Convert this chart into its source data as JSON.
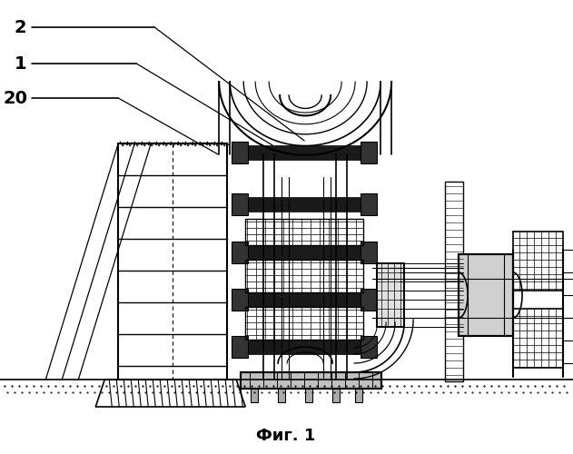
{
  "title": "Фиг. 1",
  "labels": [
    "2",
    "1",
    "20"
  ],
  "bg_color": "#ffffff",
  "line_color": "#000000",
  "title_fontsize": 13,
  "label_fontsize": 12
}
